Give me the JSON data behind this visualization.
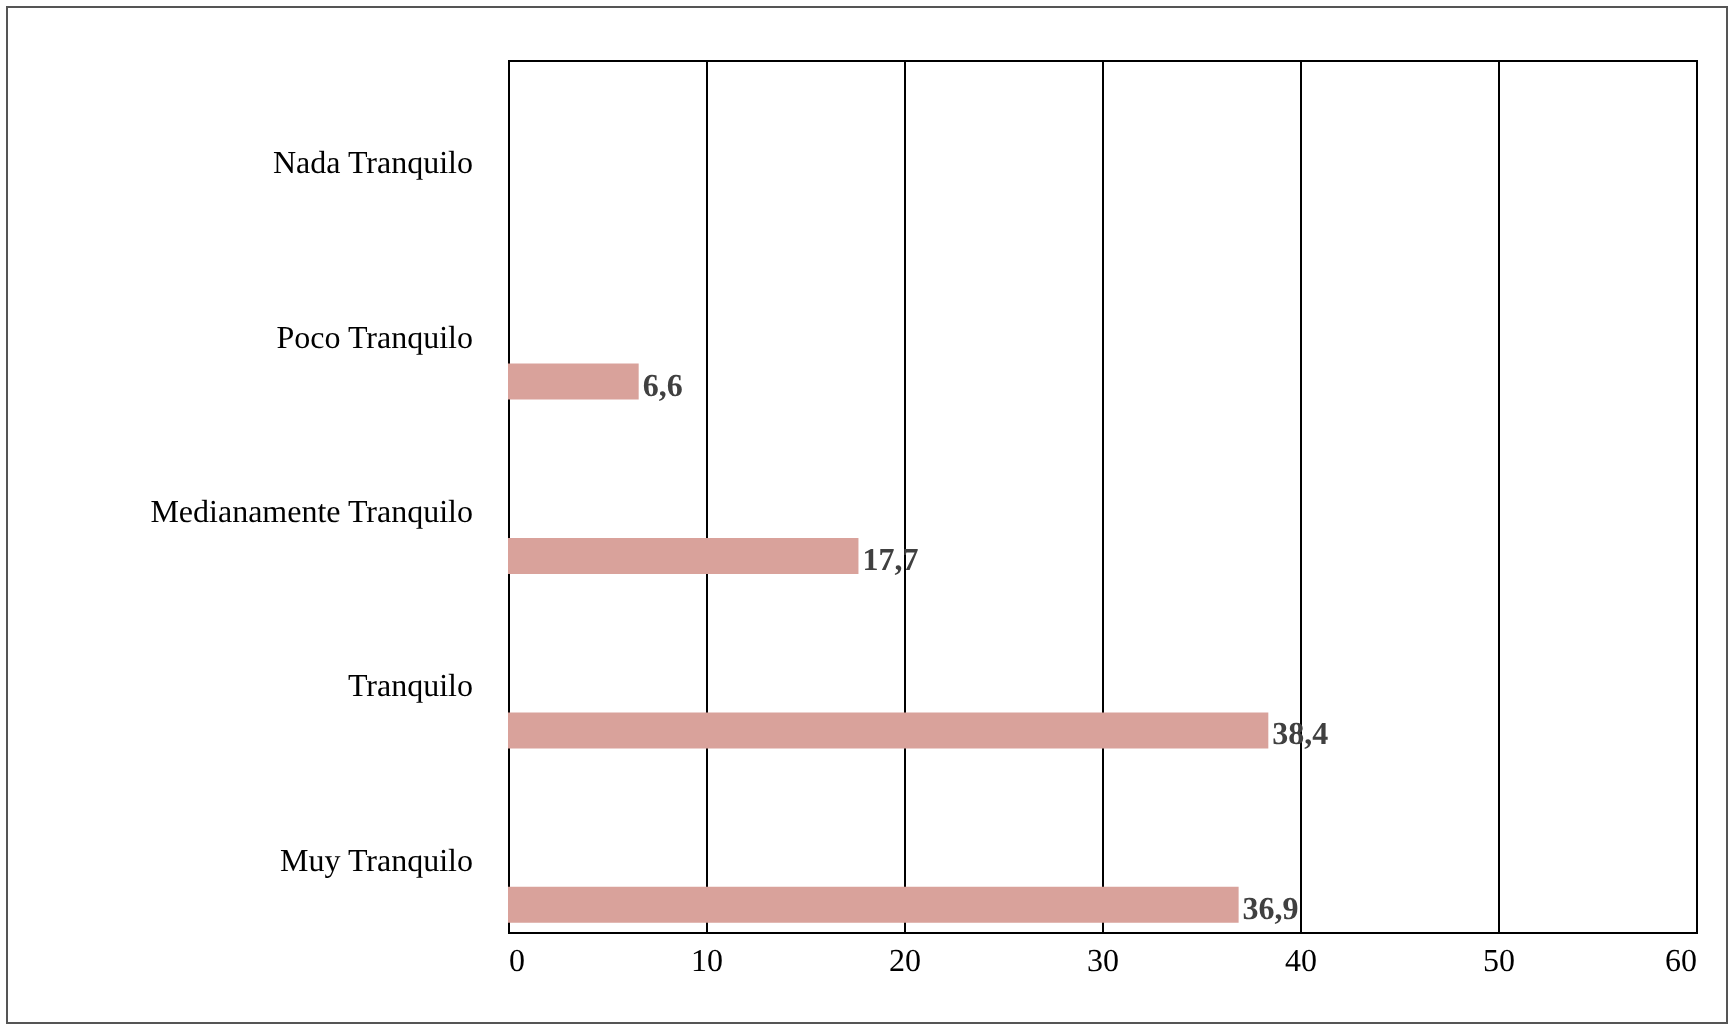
{
  "chart_data": {
    "type": "bar",
    "orientation": "horizontal",
    "categories": [
      "Nada Tranquilo",
      "Poco Tranquilo",
      "Medianamente Tranquilo",
      "Tranquilo",
      "Muy Tranquilo"
    ],
    "values": [
      0,
      6.6,
      17.7,
      38.4,
      36.9
    ],
    "value_labels": [
      null,
      "6,6",
      "17,7",
      "38,4",
      "36,9"
    ],
    "color": "#d9a29b",
    "xlim": [
      0,
      60
    ],
    "xticks": [
      0,
      10,
      20,
      30,
      40,
      50,
      60
    ],
    "grid": "x"
  }
}
